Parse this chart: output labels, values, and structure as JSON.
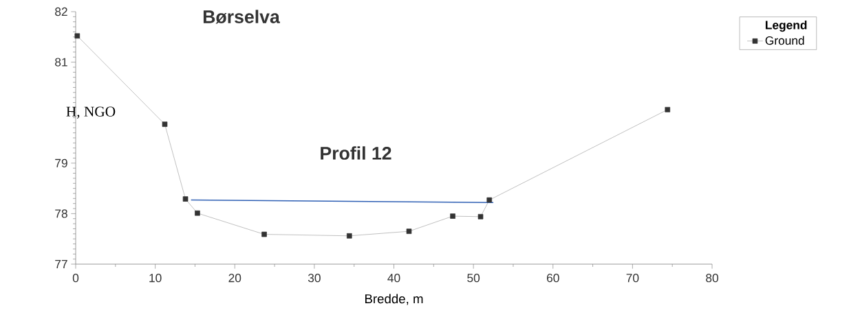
{
  "chart_data": {
    "type": "line",
    "title": "Børselva",
    "xlabel": "Bredde, m",
    "ylabel": "H, NGO",
    "legend_title": "Legend",
    "annotations": [
      "Profil 12"
    ],
    "xlim": [
      0,
      80
    ],
    "xticks": [
      0,
      10,
      20,
      30,
      40,
      50,
      60,
      70,
      80
    ],
    "ylim": [
      77,
      82
    ],
    "yticks": [
      77,
      78,
      79,
      {
        "value": 80,
        "label": null
      },
      81,
      82
    ],
    "series": [
      {
        "name": "Ground",
        "color": "#a0a0a0",
        "marker": "square",
        "x": [
          0.2,
          11.2,
          13.8,
          15.3,
          23.7,
          34.4,
          41.9,
          47.4,
          50.9,
          52.0,
          74.4
        ],
        "values": [
          81.52,
          79.77,
          78.29,
          78.01,
          77.59,
          77.56,
          77.65,
          77.95,
          77.94,
          78.27,
          80.06
        ]
      },
      {
        "color": "#2e5fb4",
        "marker": "none",
        "x": [
          14.5,
          52.5
        ],
        "values": [
          78.27,
          78.22
        ]
      }
    ],
    "grid": false,
    "legend": "top right",
    "line_style": "solid"
  }
}
